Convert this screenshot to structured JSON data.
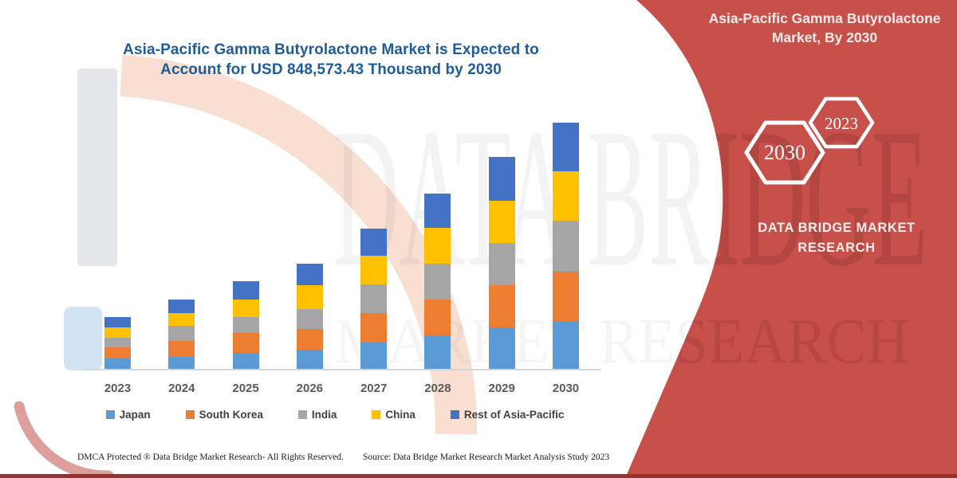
{
  "chart": {
    "title": "Asia-Pacific Gamma Butyrolactone Market is Expected to Account for USD 848,573.43 Thousand by 2030"
  },
  "chart_data": {
    "type": "bar",
    "stacked": true,
    "title": "Asia-Pacific Gamma Butyrolactone Market is Expected to Account for USD 848,573.43 Thousand by 2030",
    "unit": "USD Thousand",
    "categories": [
      "2023",
      "2024",
      "2025",
      "2026",
      "2027",
      "2028",
      "2029",
      "2030"
    ],
    "series": [
      {
        "name": "Japan",
        "color": "#5B9BD5",
        "values": [
          37500,
          43800,
          58300,
          67600,
          94000,
          116900,
          144200,
          167000
        ]
      },
      {
        "name": "South Korea",
        "color": "#ED7D31",
        "values": [
          38300,
          54700,
          68400,
          73100,
          100400,
          123200,
          145900,
          168900
        ]
      },
      {
        "name": "India",
        "color": "#A5A5A5",
        "values": [
          33700,
          52000,
          52800,
          68400,
          97700,
          123200,
          145900,
          175200
        ]
      },
      {
        "name": "China",
        "color": "#FFC000",
        "values": [
          34800,
          43800,
          61000,
          82100,
          98500,
          125100,
          144200,
          169700
        ]
      },
      {
        "name": "Rest of Asia-Pacific",
        "color": "#4472C4",
        "values": [
          36400,
          47400,
          63800,
          73100,
          94000,
          117700,
          149700,
          167773.43
        ]
      }
    ],
    "ylim": [
      0,
      900000
    ],
    "gridlines": false,
    "legend_position": "bottom",
    "xlabel": "",
    "ylabel": ""
  },
  "right_panel": {
    "title": "Asia-Pacific Gamma Butyrolactone Market, By 2030",
    "background_color": "#C8504B",
    "hexagons": [
      {
        "label": "2030"
      },
      {
        "label": "2023"
      }
    ],
    "brand": "DATA BRIDGE MARKET RESEARCH"
  },
  "watermark": {
    "line1": "DATA BRIDGE",
    "line2": "MARKET RESEARCH"
  },
  "footer": {
    "left": "DMCA Protected ® Data Bridge Market Research-  All Rights Reserved.",
    "right": "Source: Data Bridge Market Research  Market Analysis Study 2023"
  }
}
